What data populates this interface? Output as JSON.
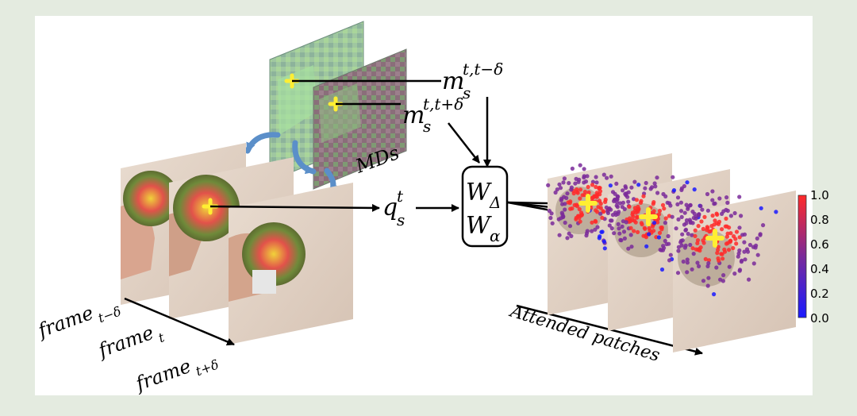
{
  "labels": {
    "m_minus": "m",
    "m_minus_sub": "s",
    "m_minus_sup": "t,t−δ",
    "m_plus": "m",
    "m_plus_sub": "s",
    "m_plus_sup": "t,t+δ",
    "mds": "MDs",
    "q": "q",
    "q_sub": "s",
    "q_sup": "t",
    "w_delta": "W",
    "w_delta_sub": "Δ",
    "w_alpha": "W",
    "w_alpha_sub": "α",
    "frame_prev": "frame",
    "frame_prev_sub": "t−δ",
    "frame_cur": "frame",
    "frame_cur_sub": "t",
    "frame_next": "frame",
    "frame_next_sub": "t+δ",
    "attended": "Attended patches"
  },
  "colorbar": {
    "ticks": [
      "1.0",
      "0.8",
      "0.6",
      "0.4",
      "0.2",
      "0.0"
    ],
    "low_color": "#1a1aff",
    "mid_color": "#7a2a9a",
    "high_color": "#ff2a2a"
  },
  "colors": {
    "background": "#e4ebe0",
    "panel": "#ffffff",
    "marker": "#ffee33",
    "curved_arrow": "#5b8fc9"
  }
}
